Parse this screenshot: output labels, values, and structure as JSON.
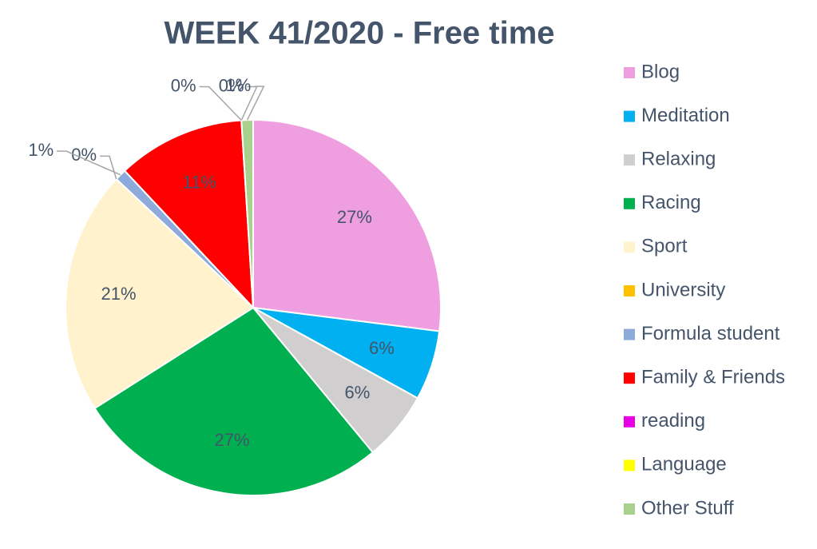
{
  "chart_data": {
    "type": "pie",
    "title": "WEEK 41/2020 - Free time",
    "categories": [
      "Blog",
      "Meditation",
      "Relaxing",
      "Racing",
      "Sport",
      "University",
      "Formula student",
      "Family & Friends",
      "reading",
      "Language",
      "Other Stuff"
    ],
    "values": [
      27,
      6,
      6,
      27,
      21,
      0,
      1,
      11,
      0,
      0,
      1
    ],
    "value_labels": [
      "27%",
      "6%",
      "6%",
      "27%",
      "21%",
      "0%",
      "1%",
      "11%",
      "0%",
      "0%",
      "1%"
    ],
    "colors": [
      "#ef9fe0",
      "#00b0f0",
      "#d0cece",
      "#00b050",
      "#fff2cc",
      "#ffc000",
      "#8eaadb",
      "#ff0000",
      "#e600e6",
      "#ffff00",
      "#a9d18e"
    ],
    "legend": "right"
  }
}
